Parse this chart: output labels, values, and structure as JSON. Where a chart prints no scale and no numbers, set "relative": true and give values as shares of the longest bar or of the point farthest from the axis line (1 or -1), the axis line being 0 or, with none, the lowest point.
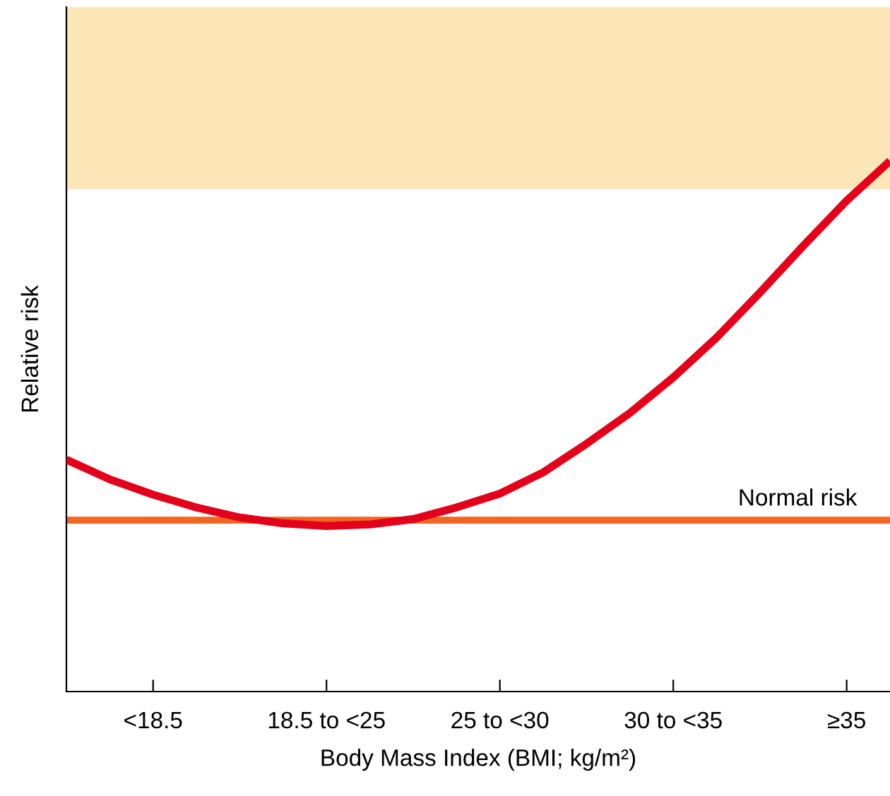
{
  "chart_data": {
    "type": "line",
    "relative": true,
    "xlabel": "Body Mass Index (BMI; kg/m²)",
    "ylabel": "Relative risk",
    "categories": [
      null,
      null,
      "<18.5",
      null,
      null,
      null,
      "18.5 to <25",
      null,
      null,
      null,
      "25 to <30",
      null,
      null,
      null,
      "30 to <35",
      null,
      null,
      null,
      "≥35",
      null
    ],
    "series": [
      {
        "color": "#e2001a",
        "values": [
          0.437,
          0.4,
          0.371,
          0.347,
          0.328,
          0.317,
          0.312,
          0.315,
          0.325,
          0.347,
          0.373,
          0.413,
          0.467,
          0.525,
          0.592,
          0.667,
          0.752,
          0.84,
          0.925,
          1
        ]
      }
    ],
    "ref_lines": [
      {
        "axis": "y",
        "value": 0.323,
        "label": "Normal risk",
        "color": "#f26522",
        "line_style": "solid"
      }
    ],
    "bands": [
      {
        "axis": "y",
        "from": 0.947,
        "to": 1.29,
        "color": "#fde6b8"
      }
    ],
    "grid": false,
    "legend": false,
    "marker": "none",
    "line_style": "solid"
  }
}
